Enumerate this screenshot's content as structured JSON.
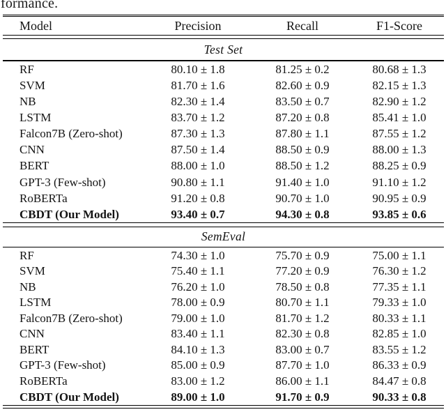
{
  "page": {
    "caption_fragment": "formance."
  },
  "colors": {
    "background": "#ffffff",
    "text": "#141414",
    "rule": "#000000"
  },
  "table": {
    "columns": [
      "Model",
      "Precision",
      "Recall",
      "F1-Score"
    ],
    "sections": [
      {
        "title": "Test Set",
        "rows": [
          {
            "model": "RF",
            "precision": "80.10 ± 1.8",
            "recall": "81.25 ± 0.2",
            "f1": "80.68 ± 1.3",
            "bold": false
          },
          {
            "model": "SVM",
            "precision": "81.70 ± 1.6",
            "recall": "82.60 ± 0.9",
            "f1": "82.15 ± 1.3",
            "bold": false
          },
          {
            "model": "NB",
            "precision": "82.30 ± 1.4",
            "recall": "83.50 ± 0.7",
            "f1": "82.90 ± 1.2",
            "bold": false
          },
          {
            "model": "LSTM",
            "precision": "83.70 ± 1.2",
            "recall": "87.20 ± 0.8",
            "f1": "85.41 ± 1.0",
            "bold": false
          },
          {
            "model": "Falcon7B (Zero-shot)",
            "precision": "87.30 ± 1.3",
            "recall": "87.80 ± 1.1",
            "f1": "87.55 ± 1.2",
            "bold": false
          },
          {
            "model": "CNN",
            "precision": "87.50 ± 1.4",
            "recall": "88.50 ± 0.9",
            "f1": "88.00 ± 1.3",
            "bold": false
          },
          {
            "model": "BERT",
            "precision": "88.00 ± 1.0",
            "recall": "88.50 ± 1.2",
            "f1": "88.25 ± 0.9",
            "bold": false
          },
          {
            "model": "GPT-3 (Few-shot)",
            "precision": "90.80 ± 1.1",
            "recall": "91.40 ± 1.0",
            "f1": "91.10 ± 1.2",
            "bold": false
          },
          {
            "model": "RoBERTa",
            "precision": "91.20 ± 0.8",
            "recall": "90.70 ± 1.0",
            "f1": "90.95 ± 0.9",
            "bold": false
          },
          {
            "model": "CBDT (Our Model)",
            "precision": "93.40 ± 0.7",
            "recall": "94.30 ± 0.8",
            "f1": "93.85 ± 0.6",
            "bold": true
          }
        ]
      },
      {
        "title": "SemEval",
        "rows": [
          {
            "model": "RF",
            "precision": "74.30 ± 1.0",
            "recall": "75.70 ± 0.9",
            "f1": "75.00 ± 1.1",
            "bold": false
          },
          {
            "model": "SVM",
            "precision": "75.40 ± 1.1",
            "recall": "77.20 ± 0.9",
            "f1": "76.30 ± 1.2",
            "bold": false
          },
          {
            "model": "NB",
            "precision": "76.20 ± 1.0",
            "recall": "78.50 ± 0.8",
            "f1": "77.35 ± 1.1",
            "bold": false
          },
          {
            "model": "LSTM",
            "precision": "78.00 ± 0.9",
            "recall": "80.70 ± 1.1",
            "f1": "79.33 ± 1.0",
            "bold": false
          },
          {
            "model": "Falcon7B (Zero-shot)",
            "precision": "79.00 ± 1.0",
            "recall": "81.70 ± 1.2",
            "f1": "80.33 ± 1.1",
            "bold": false
          },
          {
            "model": "CNN",
            "precision": "83.40 ± 1.1",
            "recall": "82.30 ± 0.8",
            "f1": "82.85 ± 1.0",
            "bold": false
          },
          {
            "model": "BERT",
            "precision": "84.10 ± 1.3",
            "recall": "83.00 ± 0.7",
            "f1": "83.55 ± 1.2",
            "bold": false
          },
          {
            "model": "GPT-3 (Few-shot)",
            "precision": "85.00 ± 0.9",
            "recall": "87.70 ± 1.0",
            "f1": "86.33 ± 0.9",
            "bold": false
          },
          {
            "model": "RoBERTa",
            "precision": "83.00 ± 1.2",
            "recall": "86.00 ± 1.1",
            "f1": "84.47 ± 0.8",
            "bold": false
          },
          {
            "model": "CBDT (Our Model)",
            "precision": "89.00 ± 1.0",
            "recall": "91.70 ± 0.9",
            "f1": "90.33 ± 0.8",
            "bold": true
          }
        ]
      }
    ]
  }
}
